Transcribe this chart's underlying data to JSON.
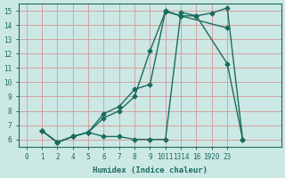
{
  "background_color": "#cce8e4",
  "grid_color": "#d4a0a0",
  "line_color": "#1a6b5e",
  "xlabel": "Humidex (Indice chaleur)",
  "xlim": [
    -0.5,
    16.5
  ],
  "ylim": [
    5.5,
    15.5
  ],
  "xtick_labels": [
    "0",
    "1",
    "2",
    "4",
    "5",
    "6",
    "7",
    "8",
    "9",
    "1011",
    "1314",
    "16",
    "1920",
    "23"
  ],
  "yticks": [
    6,
    7,
    8,
    9,
    10,
    11,
    12,
    13,
    14,
    15
  ],
  "line1_xi": [
    1,
    2,
    3,
    4,
    5,
    6,
    7,
    8,
    9,
    10,
    13
  ],
  "line1_y": [
    6.6,
    5.8,
    6.2,
    6.5,
    7.8,
    8.3,
    9.5,
    9.85,
    15.0,
    14.65,
    13.8
  ],
  "line2_xi": [
    1,
    2,
    3,
    4,
    5,
    6,
    7,
    8,
    9,
    10,
    11,
    13,
    14
  ],
  "line2_y": [
    6.6,
    5.8,
    6.2,
    6.5,
    6.2,
    6.2,
    6.0,
    6.0,
    6.0,
    14.9,
    14.65,
    11.3,
    6.0
  ],
  "line3_xi": [
    1,
    2,
    3,
    4,
    5,
    6,
    7,
    8,
    9,
    10,
    11,
    12,
    13,
    14
  ],
  "line3_y": [
    6.6,
    5.8,
    6.2,
    6.5,
    7.5,
    8.0,
    9.0,
    12.2,
    14.95,
    14.65,
    14.65,
    14.85,
    15.2,
    6.0
  ]
}
